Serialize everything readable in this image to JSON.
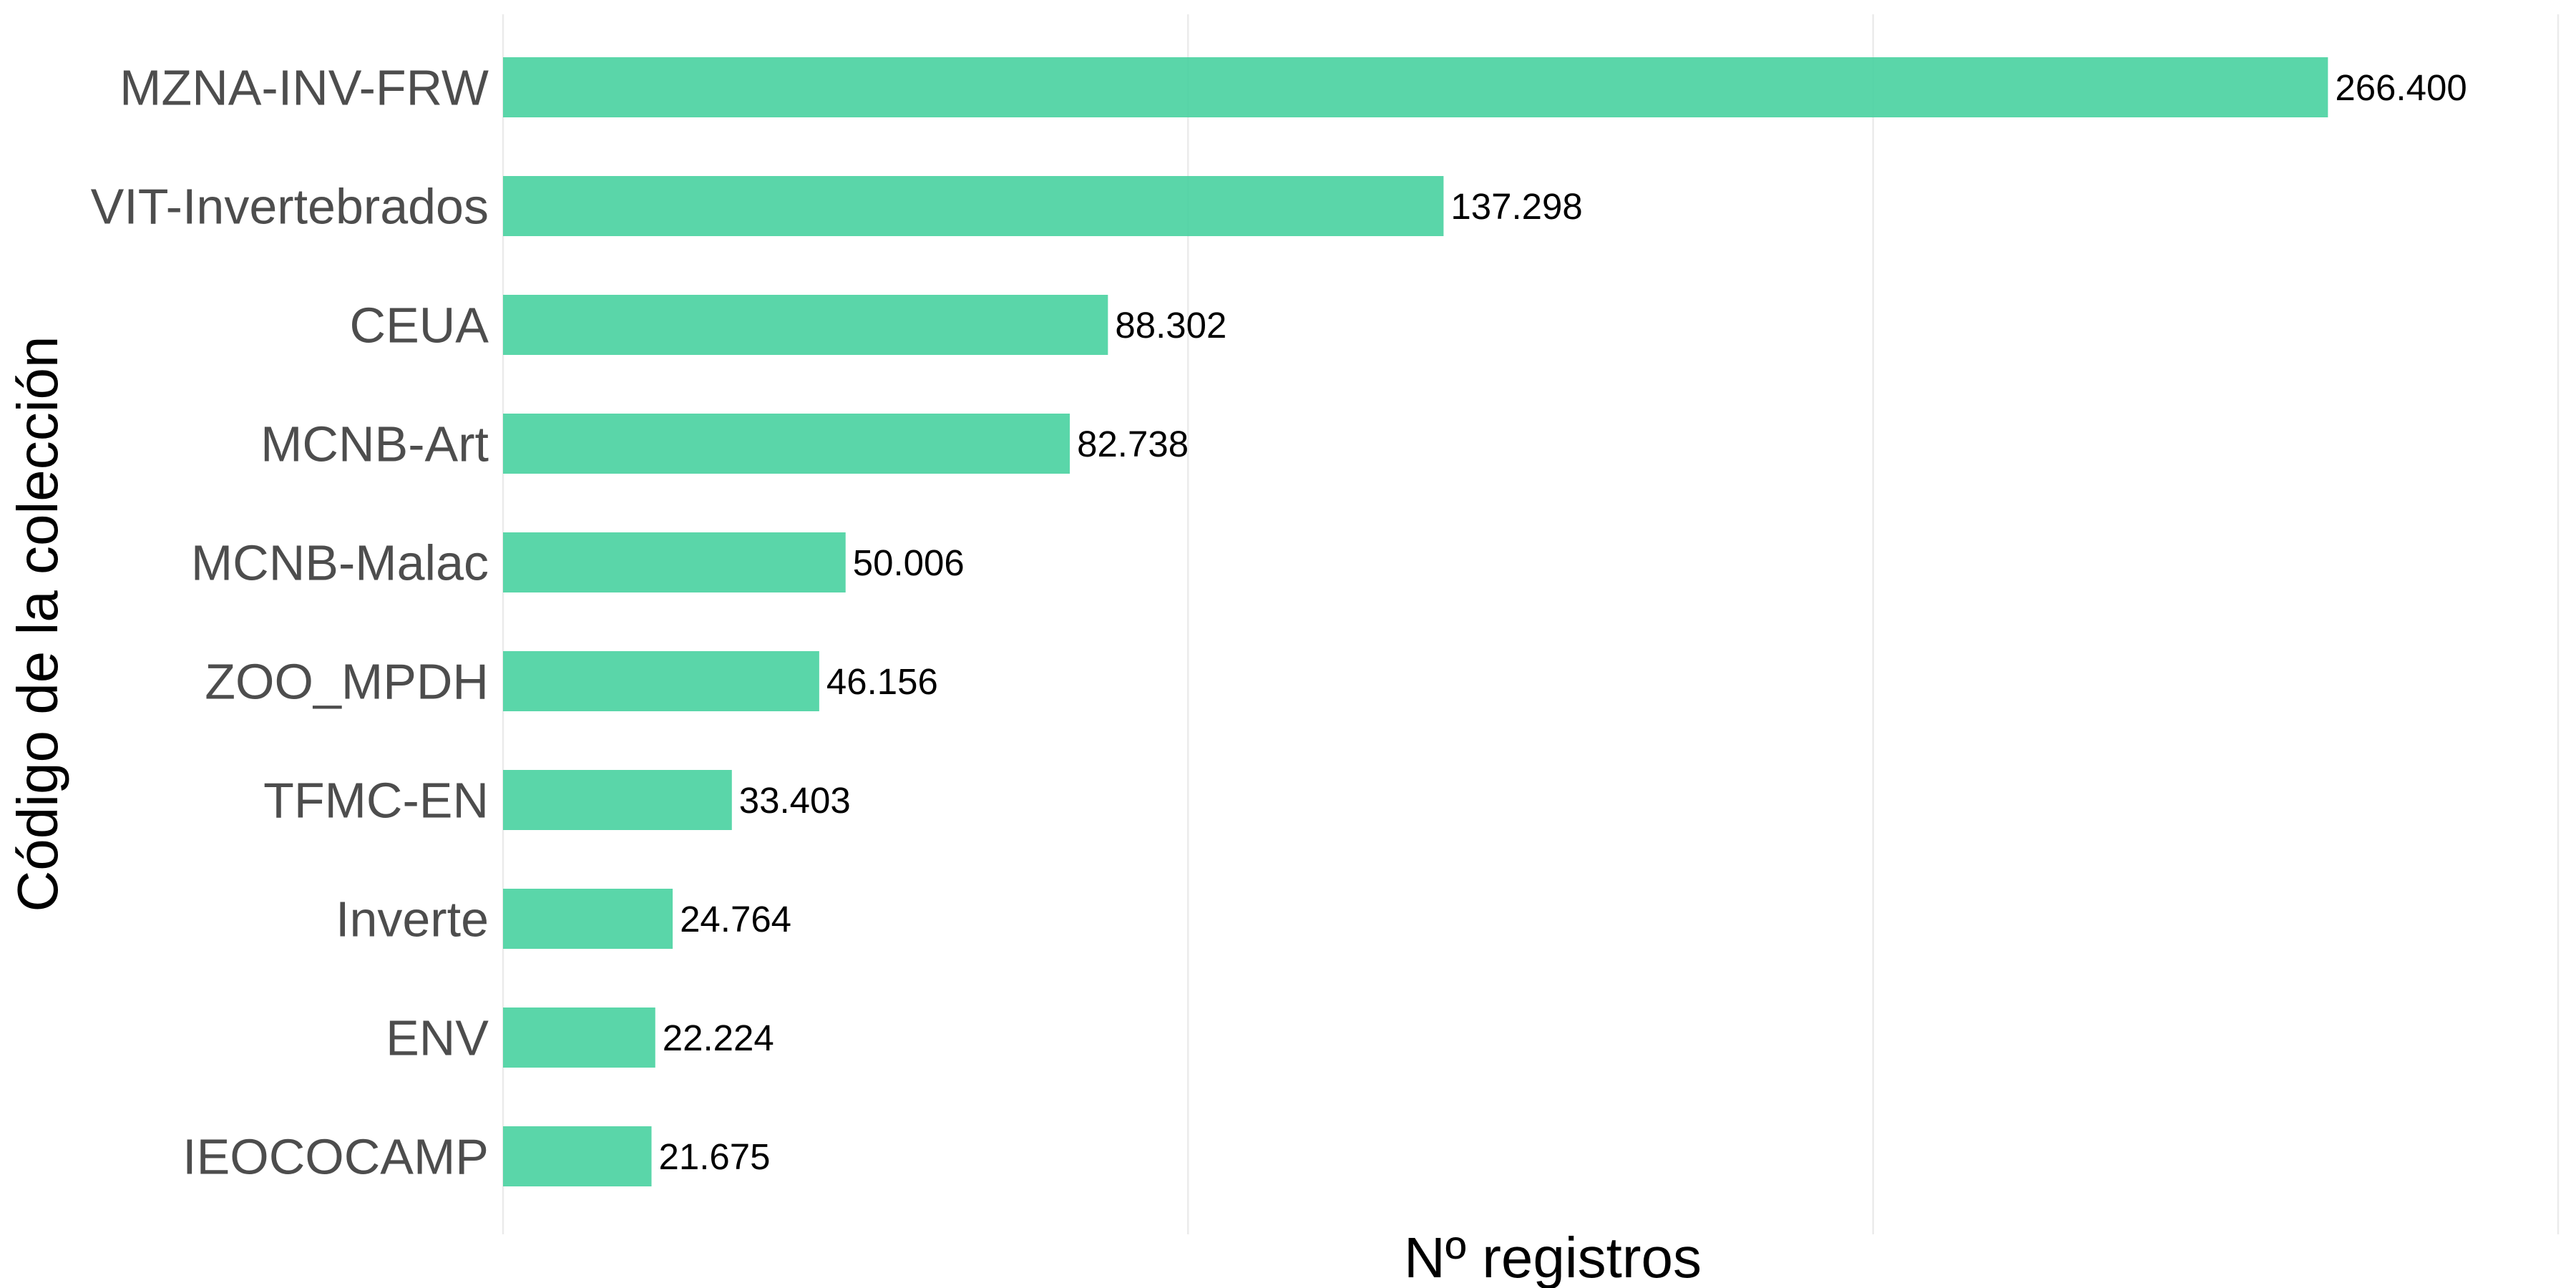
{
  "chart_data": {
    "type": "bar",
    "orientation": "horizontal",
    "title": "",
    "xlabel": "Nº registros",
    "ylabel": "Código de la colección",
    "categories": [
      "MZNA-INV-FRW",
      "VIT-Invertebrados",
      "CEUA",
      "MCNB-Art",
      "MCNB-Malac",
      "ZOO_MPDH",
      "TFMC-EN",
      "Inverte",
      "ENV",
      "IEOCOCAMP"
    ],
    "values": [
      266400,
      137298,
      88302,
      82738,
      50006,
      46156,
      33403,
      24764,
      22224,
      21675
    ],
    "value_labels": [
      "266.400",
      "137.298",
      "88.302",
      "82.738",
      "50.006",
      "46.156",
      "33.403",
      "24.764",
      "22.224",
      "21.675"
    ],
    "xlim": [
      0,
      300000
    ],
    "x_gridlines": [
      0,
      100000,
      200000,
      300000
    ],
    "x_tick_labels_shown": false,
    "grid": true,
    "legend": "none",
    "bar_color": "#48D1A0"
  }
}
